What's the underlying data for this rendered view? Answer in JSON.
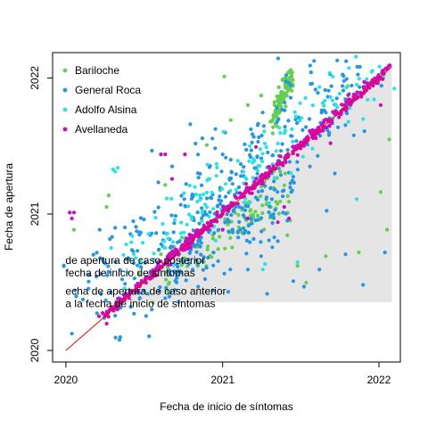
{
  "chart_data": {
    "type": "scatter",
    "title": "",
    "xlabel": "Fecha de inicio de síntomas",
    "ylabel": "Fecha de apertura",
    "x_ticks": [
      "2020",
      "2021",
      "2022"
    ],
    "y_ticks": [
      "2020",
      "2021",
      "2022"
    ],
    "xlim": [
      "2019-12-01",
      "2022-02-20"
    ],
    "ylim": [
      "2019-12-01",
      "2022-03-10"
    ],
    "grid": false,
    "legend_position": "top-left",
    "identity_line": {
      "color": "#ff0000",
      "from": "2020-01-01",
      "to": "2022-01-31"
    },
    "shaded_region": {
      "color": "#e5e5e5",
      "polygon": [
        [
          "2020-01-01",
          "2020-01-01"
        ],
        [
          "2022-01-31",
          "2022-01-31"
        ],
        [
          "2022-01-31",
          "2020-05-10"
        ],
        [
          "2020-05-10",
          "2020-05-10"
        ]
      ]
    },
    "annotations": [
      {
        "lines": [
          "de apertura de caso posterior",
          "fecha de inicio de síntomas"
        ],
        "x": "2019-12-31",
        "y": "2020-08-20"
      },
      {
        "lines": [
          "echa de apertura de caso anterior",
          "a la fecha de inicio de síntomas"
        ],
        "x": "2019-12-31",
        "y": "2020-05-30"
      }
    ],
    "series": [
      {
        "name": "Bariloche",
        "color": "#61D04F",
        "points": [
          [
            "2020-01-20",
            "2020-11-20"
          ],
          [
            "2020-04-05",
            "2021-01-20"
          ],
          [
            "2020-04-10",
            "2021-02-20"
          ],
          [
            "2021-01-05",
            "2022-01-05"
          ],
          [
            "2020-11-25",
            "2021-07-05"
          ],
          [
            "2021-01-20",
            "2021-09-10"
          ],
          [
            "2021-03-01",
            "2021-10-20"
          ],
          [
            "2021-04-01",
            "2021-11-15"
          ],
          [
            "2021-07-15",
            "2020-07-01"
          ],
          [
            "2021-08-30",
            "2020-09-10"
          ],
          [
            "2021-11-15",
            "2020-09-20"
          ],
          [
            "2022-01-20",
            "2020-11-20"
          ],
          [
            "2022-01-25",
            "2021-07-20"
          ],
          [
            "2020-12-10",
            "2020-09-20"
          ],
          [
            "2021-05-01",
            "2020-12-20"
          ],
          [
            "2021-06-01",
            "2020-11-05"
          ],
          [
            "2021-06-25",
            "2020-08-15"
          ],
          [
            "2020-06-20",
            "2020-07-25"
          ],
          [
            "2020-08-10",
            "2020-09-15"
          ],
          [
            "2020-09-15",
            "2020-09-25"
          ],
          [
            "2020-10-05",
            "2020-10-25"
          ],
          [
            "2020-08-20",
            "2021-03-20"
          ],
          [
            "2021-10-20",
            "2021-12-10"
          ],
          [
            "2022-01-05",
            "2021-03-01"
          ]
        ],
        "clusters": [
          {
            "from": [
              "2021-04-25",
              "2021-09-01"
            ],
            "to": [
              "2021-06-10",
              "2022-01-10"
            ],
            "n": 110,
            "spread": [
              6,
              14
            ]
          },
          {
            "from": [
              "2020-08-15",
              "2020-07-20"
            ],
            "to": [
              "2021-06-01",
              "2021-03-20"
            ],
            "n": 70,
            "spread": [
              20,
              30
            ]
          },
          {
            "from": [
              "2020-12-01",
              "2020-09-25"
            ],
            "to": [
              "2021-05-15",
              "2021-01-20"
            ],
            "n": 30,
            "spread": [
              20,
              20
            ]
          }
        ]
      },
      {
        "name": "General Roca",
        "color": "#2297E6",
        "points": [
          [
            "2020-01-15",
            "2020-02-15"
          ],
          [
            "2020-01-25",
            "2020-05-25"
          ],
          [
            "2020-03-20",
            "2020-11-20"
          ],
          [
            "2020-04-25",
            "2020-11-25"
          ],
          [
            "2020-08-20",
            "2020-05-20"
          ],
          [
            "2020-09-20",
            "2020-05-10"
          ],
          [
            "2020-11-05",
            "2020-06-20"
          ],
          [
            "2021-01-05",
            "2020-07-25"
          ],
          [
            "2021-03-01",
            "2020-08-05"
          ],
          [
            "2021-04-01",
            "2020-09-10"
          ],
          [
            "2021-06-15",
            "2020-07-05"
          ],
          [
            "2021-07-10",
            "2020-06-20"
          ],
          [
            "2021-08-15",
            "2020-08-05"
          ],
          [
            "2021-10-15",
            "2020-09-15"
          ],
          [
            "2021-11-25",
            "2020-06-25"
          ],
          [
            "2022-01-15",
            "2020-09-20"
          ],
          [
            "2021-09-20",
            "2021-04-20"
          ],
          [
            "2021-05-10",
            "2020-10-20"
          ],
          [
            "2020-12-10",
            "2020-06-10"
          ],
          [
            "2021-09-01",
            "2021-01-10"
          ],
          [
            "2021-04-15",
            "2020-06-01"
          ],
          [
            "2020-07-20",
            "2021-06-20"
          ],
          [
            "2020-07-10",
            "2020-06-01"
          ],
          [
            "2021-08-20",
            "2021-09-30"
          ]
        ],
        "clusters": [
          {
            "from": [
              "2020-03-10",
              "2020-05-20"
            ],
            "to": [
              "2021-10-20",
              "2022-01-01"
            ],
            "n": 320,
            "spread": [
              45,
              75
            ]
          },
          {
            "from": [
              "2020-08-10",
              "2020-06-20"
            ],
            "to": [
              "2021-02-01",
              "2021-01-10"
            ],
            "n": 80,
            "spread": [
              25,
              35
            ]
          },
          {
            "from": [
              "2021-02-20",
              "2020-10-10"
            ],
            "to": [
              "2021-05-20",
              "2021-03-10"
            ],
            "n": 40,
            "spread": [
              25,
              30
            ]
          }
        ]
      },
      {
        "name": "Adolfo Alsina",
        "color": "#28E2E5",
        "points": [
          [
            "2020-04-20",
            "2021-05-01"
          ],
          [
            "2020-05-01",
            "2021-05-05"
          ],
          [
            "2020-04-25",
            "2021-04-25"
          ],
          [
            "2021-04-10",
            "2020-08-20"
          ],
          [
            "2021-04-05",
            "2020-08-05"
          ],
          [
            "2021-06-25",
            "2020-08-25"
          ],
          [
            "2021-11-10",
            "2021-02-10"
          ],
          [
            "2021-04-20",
            "2021-01-30"
          ],
          [
            "2020-08-25",
            "2020-11-10"
          ],
          [
            "2020-10-20",
            "2020-12-25"
          ],
          [
            "2021-02-20",
            "2021-02-01"
          ],
          [
            "2021-07-01",
            "2021-07-01"
          ]
        ],
        "clusters": [
          {
            "from": [
              "2020-05-25",
              "2020-08-20"
            ],
            "to": [
              "2021-12-20",
              "2022-01-25"
            ],
            "n": 150,
            "spread": [
              30,
              45
            ]
          }
        ]
      },
      {
        "name": "Avellaneda",
        "color": "#CD0BBC",
        "points": [
          [
            "2020-01-10",
            "2021-01-05"
          ],
          [
            "2020-01-20",
            "2021-01-05"
          ],
          [
            "2020-01-15",
            "2020-12-20"
          ],
          [
            "2020-08-10",
            "2021-06-10"
          ],
          [
            "2020-08-20",
            "2021-06-10"
          ],
          [
            "2020-09-05",
            "2021-04-05"
          ],
          [
            "2020-10-05",
            "2021-06-10"
          ],
          [
            "2021-03-20",
            "2021-06-30"
          ],
          [
            "2021-05-10",
            "2020-12-10"
          ],
          [
            "2021-05-25",
            "2021-01-20"
          ],
          [
            "2021-06-05",
            "2020-12-20"
          ],
          [
            "2022-01-05",
            "2021-10-20"
          ],
          [
            "2021-01-01",
            "2020-11-20"
          ],
          [
            "2021-03-01",
            "2020-12-20"
          ],
          [
            "2021-09-10",
            "2021-07-10"
          ]
        ],
        "diagonal": {
          "from": "2020-04-01",
          "to": "2022-01-25",
          "n": 480,
          "jitter_days": 7,
          "skew_days": 3
        }
      }
    ]
  }
}
